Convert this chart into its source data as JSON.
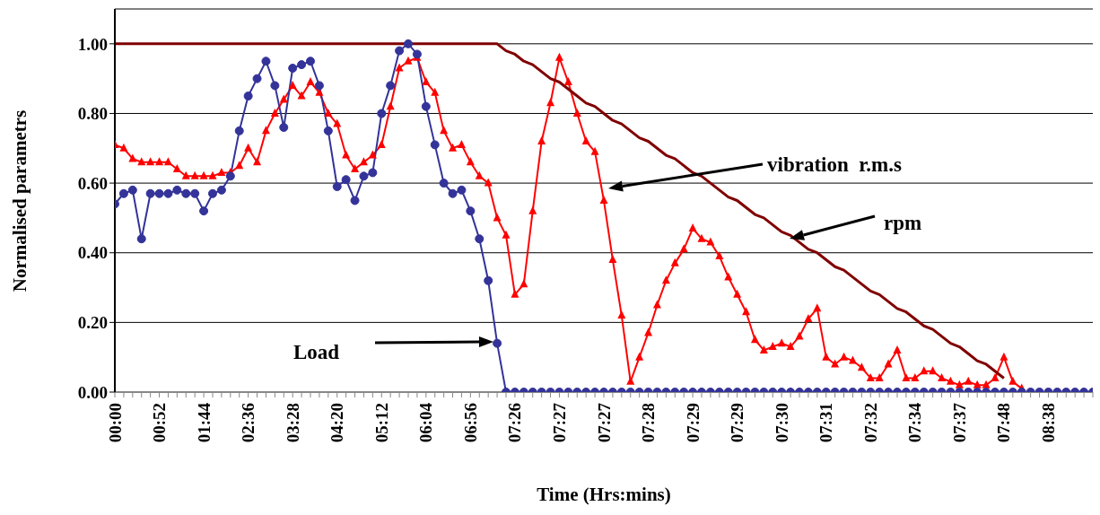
{
  "chart_data": {
    "type": "line",
    "xlabel": "Time (Hrs:mins)",
    "ylabel": "Normalised parametrs",
    "categories": [
      "00:00",
      null,
      null,
      null,
      null,
      "00:52",
      null,
      null,
      null,
      null,
      "01:44",
      null,
      null,
      null,
      null,
      "02:36",
      null,
      null,
      null,
      null,
      "03:28",
      null,
      null,
      null,
      null,
      "04:20",
      null,
      null,
      null,
      null,
      "05:12",
      null,
      null,
      null,
      null,
      "06:04",
      null,
      null,
      null,
      null,
      "06:56",
      null,
      null,
      null,
      null,
      "07:26",
      null,
      null,
      null,
      null,
      "07:27",
      null,
      null,
      null,
      null,
      "07:27",
      null,
      null,
      null,
      null,
      "07:28",
      null,
      null,
      null,
      null,
      "07:29",
      null,
      null,
      null,
      null,
      "07:29",
      null,
      null,
      null,
      null,
      "07:30",
      null,
      null,
      null,
      null,
      "07:31",
      null,
      null,
      null,
      null,
      "07:32",
      null,
      null,
      null,
      null,
      "07:34",
      null,
      null,
      null,
      null,
      "07:37",
      null,
      null,
      null,
      null,
      "07:48",
      null,
      null,
      null,
      null,
      "08:38",
      null,
      null,
      null,
      null,
      null
    ],
    "series": [
      {
        "color": "#ff0000",
        "marker": "triangle",
        "values": [
          0.71,
          0.7,
          0.67,
          0.66,
          0.66,
          0.66,
          0.66,
          0.64,
          0.62,
          0.62,
          0.62,
          0.62,
          0.63,
          0.63,
          0.65,
          0.7,
          0.66,
          0.75,
          0.8,
          0.84,
          0.88,
          0.85,
          0.89,
          0.86,
          0.8,
          0.77,
          0.68,
          0.64,
          0.66,
          0.68,
          0.71,
          0.82,
          0.93,
          0.95,
          0.96,
          0.89,
          0.86,
          0.75,
          0.7,
          0.71,
          0.66,
          0.62,
          0.6,
          0.5,
          0.45,
          0.28,
          0.31,
          0.52,
          0.72,
          0.83,
          0.96,
          0.89,
          0.8,
          0.72,
          0.69,
          0.55,
          0.38,
          0.22,
          0.03,
          0.1,
          0.17,
          0.25,
          0.32,
          0.37,
          0.41,
          0.47,
          0.44,
          0.43,
          0.39,
          0.33,
          0.28,
          0.23,
          0.15,
          0.12,
          0.13,
          0.14,
          0.13,
          0.16,
          0.21,
          0.24,
          0.1,
          0.08,
          0.1,
          0.09,
          0.07,
          0.04,
          0.04,
          0.08,
          0.12,
          0.04,
          0.04,
          0.06,
          0.06,
          0.04,
          0.03,
          0.02,
          0.03,
          0.02,
          0.02,
          0.04,
          0.1,
          0.03,
          0.01,
          null,
          null,
          null,
          null,
          null,
          null,
          null,
          null
        ]
      },
      {
        "color": "#800000",
        "marker": "none",
        "values": [
          1,
          1,
          1,
          1,
          1,
          1,
          1,
          1,
          1,
          1,
          1,
          1,
          1,
          1,
          1,
          1,
          1,
          1,
          1,
          1,
          1,
          1,
          1,
          1,
          1,
          1,
          1,
          1,
          1,
          1,
          1,
          1,
          1,
          1,
          1,
          1,
          1,
          1,
          1,
          1,
          1,
          1,
          1,
          1,
          0.98,
          0.97,
          0.95,
          0.94,
          0.92,
          0.9,
          0.89,
          0.87,
          0.85,
          0.83,
          0.82,
          0.8,
          0.78,
          0.77,
          0.75,
          0.73,
          0.72,
          0.7,
          0.68,
          0.67,
          0.65,
          0.63,
          0.62,
          0.6,
          0.58,
          0.56,
          0.55,
          0.53,
          0.51,
          0.5,
          0.48,
          0.46,
          0.45,
          0.43,
          0.41,
          0.4,
          0.38,
          0.36,
          0.35,
          0.33,
          0.31,
          0.29,
          0.28,
          0.26,
          0.24,
          0.23,
          0.21,
          0.19,
          0.18,
          0.16,
          0.14,
          0.13,
          0.11,
          0.09,
          0.08,
          0.06,
          0.04,
          null,
          null,
          null,
          null,
          null,
          null,
          null,
          null,
          null,
          null
        ]
      },
      {
        "color": "#333399",
        "marker": "circle",
        "values": [
          0.54,
          0.57,
          0.58,
          0.44,
          0.57,
          0.57,
          0.57,
          0.58,
          0.57,
          0.57,
          0.52,
          0.57,
          0.58,
          0.62,
          0.75,
          0.85,
          0.9,
          0.95,
          0.88,
          0.76,
          0.93,
          0.94,
          0.95,
          0.88,
          0.75,
          0.59,
          0.61,
          0.55,
          0.62,
          0.63,
          0.8,
          0.88,
          0.98,
          1,
          0.97,
          0.82,
          0.71,
          0.6,
          0.57,
          0.58,
          0.52,
          0.44,
          0.32,
          0.14,
          0,
          0,
          0,
          0,
          0,
          0,
          0,
          0,
          0,
          0,
          0,
          0,
          0,
          0,
          0,
          0,
          0,
          0,
          0,
          0,
          0,
          0,
          0,
          0,
          0,
          0,
          0,
          0,
          0,
          0,
          0,
          0,
          0,
          0,
          0,
          0,
          0,
          0,
          0,
          0,
          0,
          0,
          0,
          0,
          0,
          0,
          0,
          0,
          0,
          0,
          0,
          0,
          0,
          0,
          0,
          0,
          0,
          0,
          0,
          0,
          0,
          0,
          0,
          0,
          0,
          0,
          0
        ]
      }
    ],
    "ylim": [
      0,
      1.1
    ],
    "yticks": [
      {
        "value": 0,
        "label": "0.00"
      },
      {
        "value": 0.2,
        "label": "0.20"
      },
      {
        "value": 0.4,
        "label": "0.40"
      },
      {
        "value": 0.6,
        "label": "0.60"
      },
      {
        "value": 0.8,
        "label": "0.80"
      },
      {
        "value": 1,
        "label": "1.00"
      }
    ],
    "annotations": [
      "vibration  r.m.s",
      "rpm",
      "Load"
    ],
    "grid": "y"
  }
}
